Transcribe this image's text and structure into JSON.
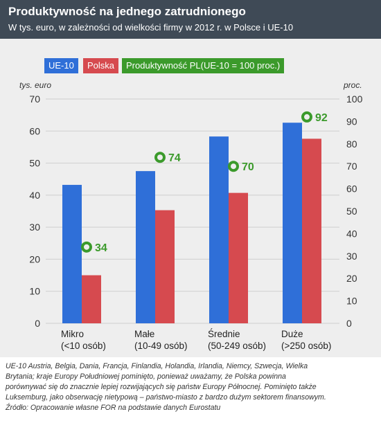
{
  "header": {
    "title": "Produktywność na jednego zatrudnionego",
    "subtitle": "W tys. euro, w zależności od wielkości firmy w 2012 r. w Polsce i UE-10"
  },
  "colors": {
    "header_bg": "#3f4a56",
    "panel_bg": "#eeeeee",
    "ue10": "#2f6fd8",
    "polska": "#d64a4f",
    "productivity": "#3b9a2b",
    "grid": "#cfcfcf",
    "text": "#333333"
  },
  "chart_data": {
    "type": "bar",
    "legend": [
      "UE-10",
      "Polska",
      "Produktywność PL(UE-10 = 100 proc.)"
    ],
    "categories": [
      {
        "name": "Mikro",
        "sub": "(<10 osób)"
      },
      {
        "name": "Małe",
        "sub": "(10-49 osób)"
      },
      {
        "name": "Średnie",
        "sub": "(50-249 osób)"
      },
      {
        "name": "Duże",
        "sub": "(>250 osób)"
      }
    ],
    "series": [
      {
        "name": "UE-10",
        "values": [
          43.2,
          47.5,
          58.3,
          62.6
        ]
      },
      {
        "name": "Polska",
        "values": [
          15.0,
          35.3,
          40.7,
          57.6
        ]
      },
      {
        "name": "Produktywność PL(UE-10 = 100 proc.)",
        "values": [
          34,
          74,
          70,
          92
        ],
        "axis": "right"
      }
    ],
    "y_left": {
      "label": "tys. euro",
      "range": [
        0,
        70
      ],
      "ticks": [
        0,
        10,
        20,
        30,
        40,
        50,
        60,
        70
      ]
    },
    "y_right": {
      "label": "proc.",
      "range": [
        0,
        100
      ],
      "ticks": [
        0,
        10,
        20,
        30,
        40,
        50,
        60,
        70,
        80,
        90,
        100
      ]
    },
    "grid": true,
    "legend_placement": "top-left"
  },
  "footnote": [
    "UE-10 Austria, Belgia, Dania, Francja, Finlandia, Holandia, Irlandia, Niemcy, Szwecja, Wielka",
    "Brytania; kraje Europy Południowej pominięto, ponieważ uważamy, że Polska powinna",
    "porównywać się do znacznie lepiej rozwijających się państw Europy Północnej. Pominięto także",
    "Luksemburg, jako obserwację nietypową – państwo-miasto z bardzo dużym sektorem finansowym.",
    "Źródło: Opracowanie własne FOR na podstawie danych Eurostatu"
  ]
}
